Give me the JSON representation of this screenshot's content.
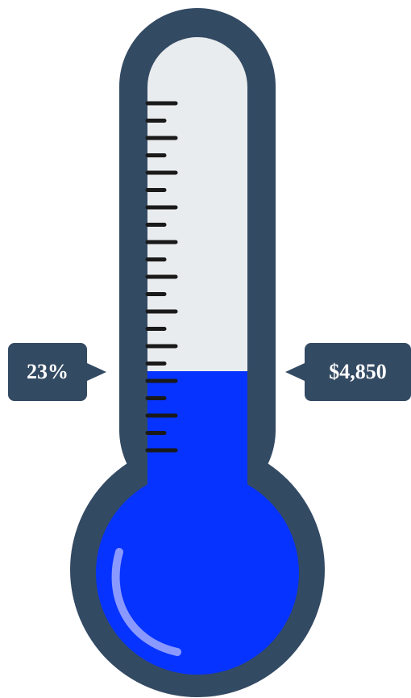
{
  "gauge": {
    "percent_label": "23%",
    "amount_label": "$4,850",
    "fill_fraction": 0.23,
    "tick_count": 21,
    "colors": {
      "frame": "#334a63",
      "empty_tube": "#e9ecee",
      "fill": "#0633ff",
      "highlight": "#8a99ff",
      "ticks": "#1a1a1a"
    }
  }
}
